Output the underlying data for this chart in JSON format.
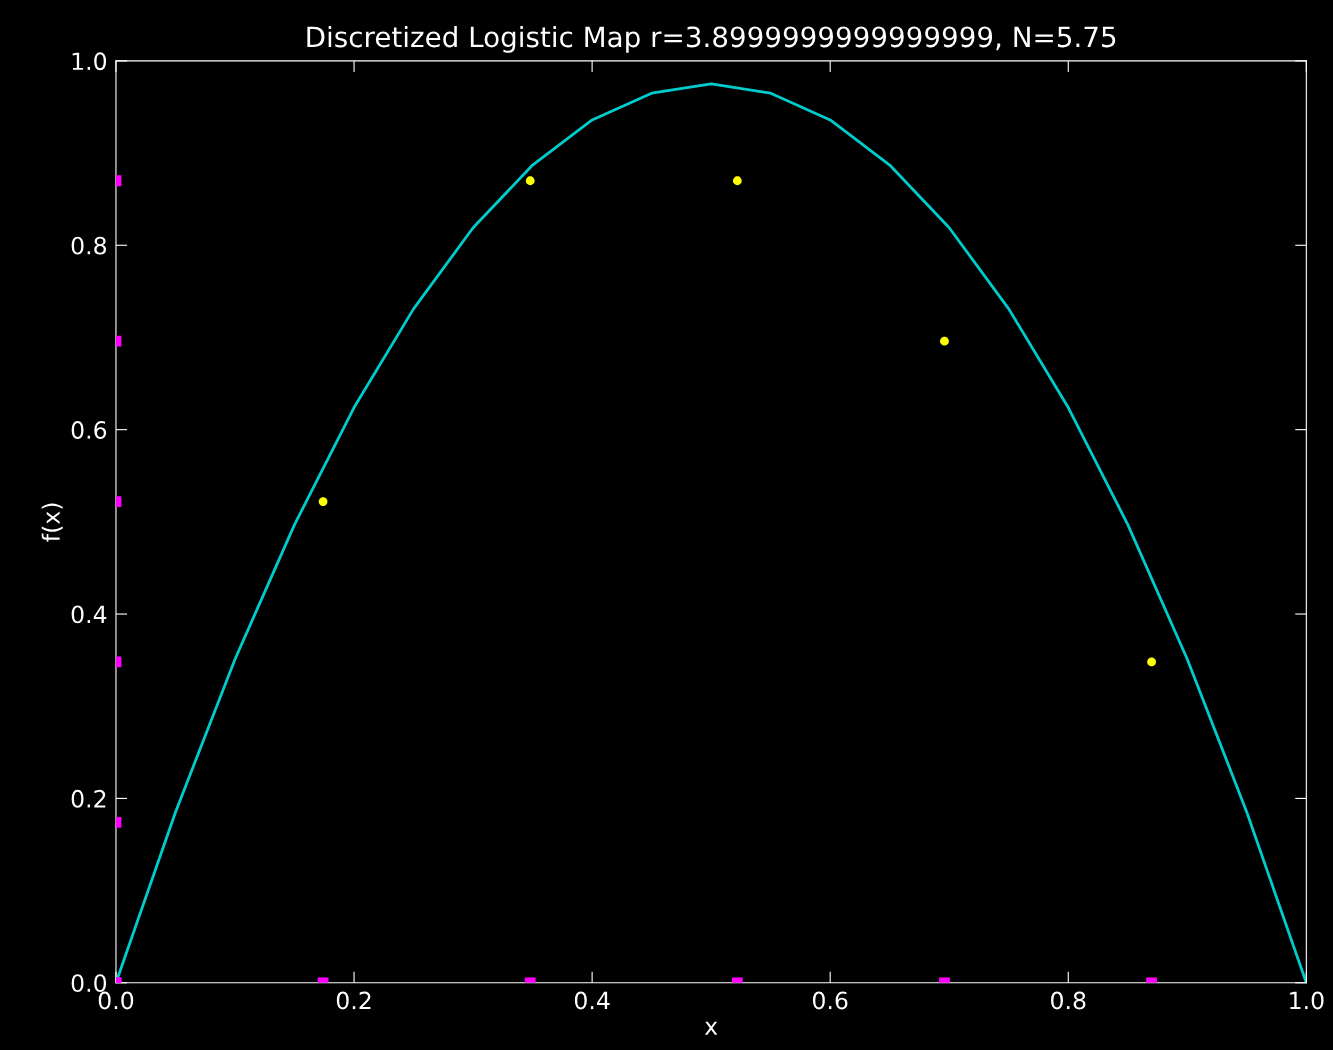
{
  "chart_data": {
    "type": "line",
    "title": "Discretized Logistic Map r=3.8999999999999999, N=5.75",
    "xlabel": "x",
    "ylabel": "f(x)",
    "xlim": [
      0,
      1
    ],
    "ylim": [
      0,
      1
    ],
    "xticks": [
      {
        "value": 0,
        "label": "0.0"
      },
      0.2,
      0.4,
      0.6,
      0.8,
      {
        "value": 1,
        "label": "1.0"
      }
    ],
    "yticks": [
      {
        "value": 0,
        "label": "0.0"
      },
      0.2,
      0.4,
      0.6,
      0.8,
      {
        "value": 1,
        "label": "1.0"
      }
    ],
    "grid": false,
    "legend": false,
    "series": [
      {
        "color": "#00cccc",
        "marker": "none",
        "line_style": "solid",
        "x": [
          0,
          0.05,
          0.1,
          0.15,
          0.2,
          0.25,
          0.3,
          0.35,
          0.4,
          0.45,
          0.5,
          0.55,
          0.6,
          0.65,
          0.7,
          0.75,
          0.8,
          0.85,
          0.9,
          0.95,
          1
        ],
        "values": [
          0,
          0.185,
          0.351,
          0.497,
          0.624,
          0.731,
          0.819,
          0.887,
          0.936,
          0.965,
          0.975,
          0.965,
          0.936,
          0.887,
          0.819,
          0.731,
          0.624,
          0.497,
          0.351,
          0.185,
          0
        ]
      },
      {
        "type": "scatter",
        "color": "#ffff00",
        "marker": "circle",
        "x": [
          0.174,
          0.348,
          0.522,
          0.696,
          0.87
        ],
        "values": [
          0.522,
          0.87,
          0.87,
          0.696,
          0.348
        ]
      },
      {
        "type": "scatter",
        "color": "#ff00ff",
        "marker": "square",
        "x": [
          0,
          0.174,
          0.348,
          0.522,
          0.696,
          0.87
        ],
        "values": [
          0,
          0,
          0,
          0,
          0,
          0
        ]
      },
      {
        "type": "scatter",
        "color": "#ff00ff",
        "marker": "square",
        "x": [
          0,
          0,
          0,
          0,
          0,
          0
        ],
        "values": [
          0,
          0.174,
          0.348,
          0.522,
          0.696,
          0.87
        ]
      }
    ]
  }
}
